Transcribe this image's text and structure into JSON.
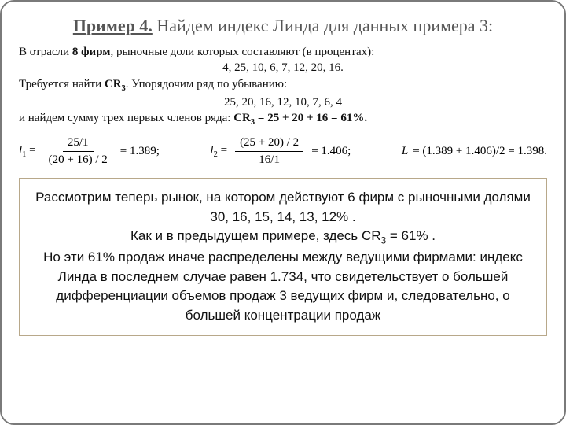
{
  "title": {
    "label": "Пример 4.",
    "rest": " Найдем индекс Линда для данных примера 3:"
  },
  "p1": {
    "line1a": "В отрасли ",
    "line1b": "8 фирм",
    "line1c": ", рыночные доли которых составляют (в процентах):",
    "shares": "4, 25, 10, 6, 7, 12, 20, 16.",
    "line2a": "Требуется найти ",
    "line2b": "CR",
    "line2sub": "3",
    "line2c": ". Упорядочим ряд по убыванию:",
    "sorted": "25, 20, 16, 12, 10, 7, 6, 4",
    "line3a": "и найдем сумму трех первых членов ряда: ",
    "line3b": "CR",
    "line3sub": "3",
    "line3c": " = 25 + 20 + 16 = 61%."
  },
  "formulas": {
    "l1": {
      "label": "l",
      "sub": "1",
      "eq": " = ",
      "num": "25/1",
      "den": "(20 + 16) / 2",
      "val": " = 1.389;"
    },
    "l2": {
      "label": "l",
      "sub": "2",
      "eq": " = ",
      "num": "(25 + 20) / 2",
      "den": "16/1",
      "val": " = 1.406;"
    },
    "L": {
      "label": "L",
      "eqexpr": " = (1.389 + 1.406)/2 = 1.398."
    }
  },
  "box": {
    "t1a": "Рассмотрим теперь рынок, на котором действуют 6 фирм с рыночными долями 30, 16, 15, 14, 13, 12% .",
    "t2a": "Как и в предыдущем примере, здесь CR",
    "t2sub": "3",
    "t2b": " =  61% .",
    "t3": "Но эти 61% продаж иначе распределены между ведущими фирмами: индекс Линда в последнем случае равен 1.734, что свидетельствует о большей дифференциации объемов продаж 3 ведущих фирм и, следовательно, о большей концентрации продаж"
  }
}
